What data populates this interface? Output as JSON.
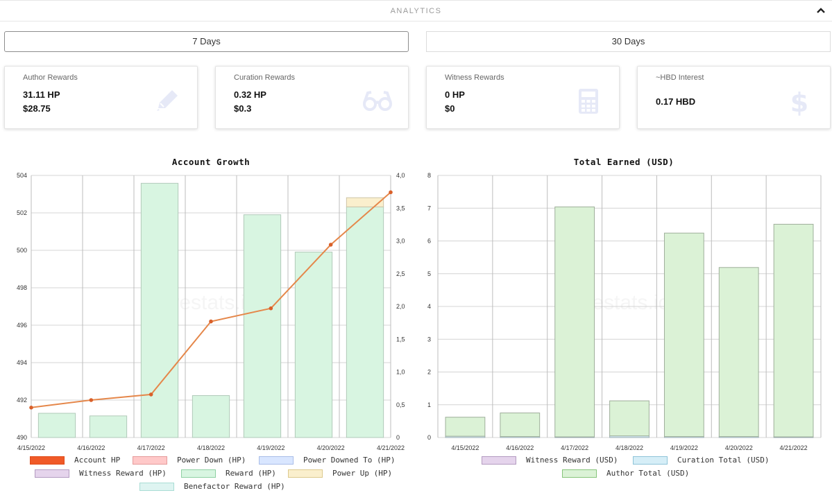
{
  "header": {
    "title": "ANALYTICS"
  },
  "range_buttons": {
    "days7": "7 Days",
    "days30": "30 Days"
  },
  "cards": [
    {
      "label": "Author Rewards",
      "v1": "31.11 HP",
      "v2": "$28.75",
      "icon": "pencil-icon"
    },
    {
      "label": "Curation Rewards",
      "v1": "0.32 HP",
      "v2": "$0.3",
      "icon": "glasses-icon"
    },
    {
      "label": "Witness Rewards",
      "v1": "0 HP",
      "v2": "$0",
      "icon": "calculator-icon"
    },
    {
      "label": "~HBD Interest",
      "v1": "0.17 HBD",
      "icon": "dollar-icon"
    }
  ],
  "watermark": "hivestats.io",
  "chart_data": [
    {
      "type": "bar",
      "title": "Account Growth",
      "categories": [
        "4/15/2022",
        "4/16/2022",
        "4/17/2022",
        "4/18/2022",
        "4/19/2022",
        "4/20/2022",
        "4/21/2022"
      ],
      "ylim_left": [
        490,
        504
      ],
      "yticks_left": [
        "490",
        "492",
        "494",
        "496",
        "498",
        "500",
        "502",
        "504"
      ],
      "ylim_right": [
        0,
        4.0
      ],
      "yticks_right": [
        "0",
        "0,5",
        "1,0",
        "1,5",
        "2,0",
        "2,5",
        "3,0",
        "3,5",
        "4,0"
      ],
      "grid": true,
      "legend_placement": "bottom",
      "series": [
        {
          "name": "Account HP",
          "kind": "line",
          "axis": "left",
          "color": "#e5874a",
          "values": [
            491.6,
            492.0,
            492.3,
            496.2,
            496.9,
            500.3,
            503.1
          ]
        },
        {
          "name": "Power Down (HP)",
          "kind": "bar",
          "axis": "right",
          "color": "#ffc9c9",
          "values": [
            0,
            0,
            0,
            0,
            0,
            0,
            0
          ]
        },
        {
          "name": "Power Downed To (HP)",
          "kind": "bar",
          "axis": "right",
          "color": "#d9e6ff",
          "values": [
            0,
            0,
            0,
            0,
            0,
            0,
            0
          ]
        },
        {
          "name": "Witness Reward (HP)",
          "kind": "bar",
          "axis": "right",
          "color": "#e5d4ec",
          "values": [
            0,
            0,
            0,
            0,
            0,
            0,
            0
          ]
        },
        {
          "name": "Reward (HP)",
          "kind": "bar",
          "axis": "right",
          "color": "#d8f5e1",
          "values": [
            0.37,
            0.33,
            3.88,
            0.64,
            3.4,
            2.83,
            3.52
          ]
        },
        {
          "name": "Power Up (HP)",
          "kind": "bar",
          "axis": "right",
          "color": "#faefcd",
          "values": [
            0,
            0,
            0,
            0,
            0,
            0,
            0.14
          ]
        },
        {
          "name": "Benefactor Reward (HP)",
          "kind": "bar",
          "axis": "right",
          "color": "#def4f1",
          "values": [
            0,
            0,
            0,
            0,
            0,
            0,
            0
          ]
        }
      ],
      "legend_colors": [
        "#f05a28",
        "#ffc9c9",
        "#d9e6ff",
        "#e5d4ec",
        "#d8f5e1",
        "#faefcd",
        "#def4f1"
      ]
    },
    {
      "type": "bar",
      "title": "Total Earned (USD)",
      "categories": [
        "4/15/2022",
        "4/16/2022",
        "4/17/2022",
        "4/18/2022",
        "4/19/2022",
        "4/20/2022",
        "4/21/2022"
      ],
      "ylim": [
        0,
        8
      ],
      "yticks": [
        "0",
        "1",
        "2",
        "3",
        "4",
        "5",
        "6",
        "7",
        "8"
      ],
      "grid": true,
      "legend_placement": "bottom",
      "series": [
        {
          "name": "Witness Reward (USD)",
          "color": "#e5d4ec",
          "values": [
            0,
            0,
            0,
            0,
            0,
            0,
            0
          ]
        },
        {
          "name": "Curation Total (USD)",
          "color": "#d6eef7",
          "values": [
            0.04,
            0.03,
            0.02,
            0.05,
            0.03,
            0.03,
            0.02
          ]
        },
        {
          "name": "Author Total (USD)",
          "color": "#dbf2d6",
          "values": [
            0.58,
            0.72,
            7.02,
            1.07,
            6.21,
            5.16,
            6.49
          ]
        }
      ]
    }
  ]
}
